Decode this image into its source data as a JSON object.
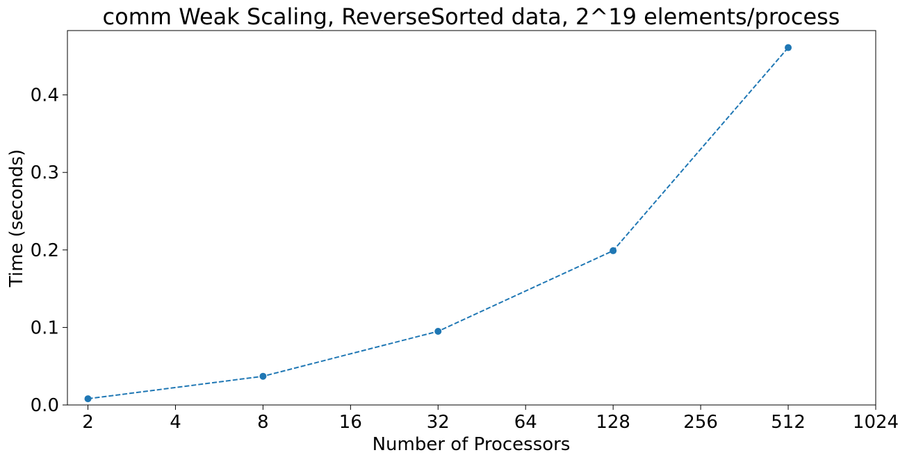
{
  "chart_data": {
    "type": "line",
    "title": "comm Weak Scaling, ReverseSorted data, 2^19 elements/process",
    "xlabel": "Number of Processors",
    "ylabel": "Time (seconds)",
    "x_scale": "log2",
    "x_ticks": [
      "2",
      "4",
      "8",
      "16",
      "32",
      "64",
      "128",
      "256",
      "512",
      "1024"
    ],
    "x_tick_values": [
      2,
      4,
      8,
      16,
      32,
      64,
      128,
      256,
      512,
      1024
    ],
    "y_ticks": [
      "0.0",
      "0.1",
      "0.2",
      "0.3",
      "0.4"
    ],
    "y_tick_values": [
      0.0,
      0.1,
      0.2,
      0.3,
      0.4
    ],
    "ylim": [
      0,
      0.483
    ],
    "xlim": [
      1.7,
      1024
    ],
    "grid": false,
    "series": [
      {
        "x": [
          2,
          8,
          32,
          128,
          512
        ],
        "y": [
          0.008,
          0.037,
          0.095,
          0.199,
          0.461
        ],
        "color": "#1f77b4",
        "line_style": "dashed",
        "marker": "circle"
      }
    ]
  }
}
